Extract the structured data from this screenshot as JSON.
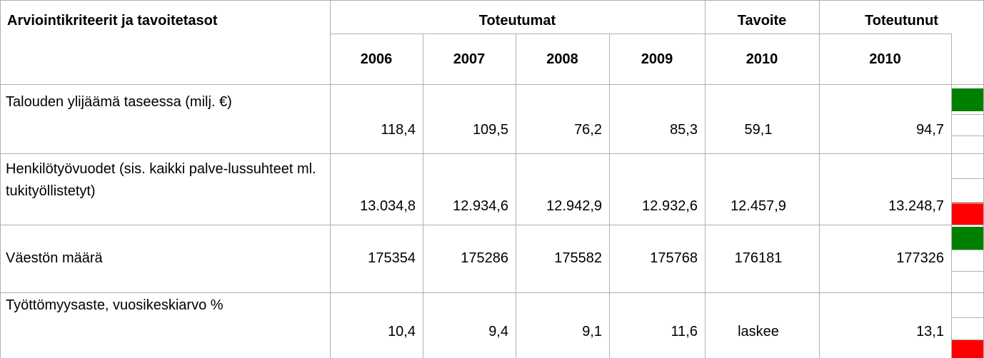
{
  "header": {
    "criteria": "Arviointikriteerit ja tavoitetasot",
    "actuals": "Toteutumat",
    "target": "Tavoite",
    "achieved": "Toteutunut",
    "years": [
      "2006",
      "2007",
      "2008",
      "2009",
      "2010",
      "2010"
    ]
  },
  "table": {
    "rows": [
      [
        "Talouden ylijäämä taseessa (milj. €)",
        "118,4",
        "109,5",
        "76,2",
        "85,3",
        "59,1",
        "94,7"
      ],
      [
        "Henkilötyövuodet (sis. kaikki palve-lussuhteet ml. tukityöllistetyt)",
        "13.034,8",
        "12.934,6",
        "12.942,9",
        "12.932,6",
        "12.457,9",
        "13.248,7"
      ],
      [
        "Väestön määrä",
        "175354",
        "175286",
        "175582",
        "175768",
        "176181",
        "177326"
      ],
      [
        "Työttömyysaste, vuosikeskiarvo %",
        "10,4",
        "9,4",
        "9,1",
        "11,6",
        "laskee",
        "13,1"
      ]
    ]
  }
}
